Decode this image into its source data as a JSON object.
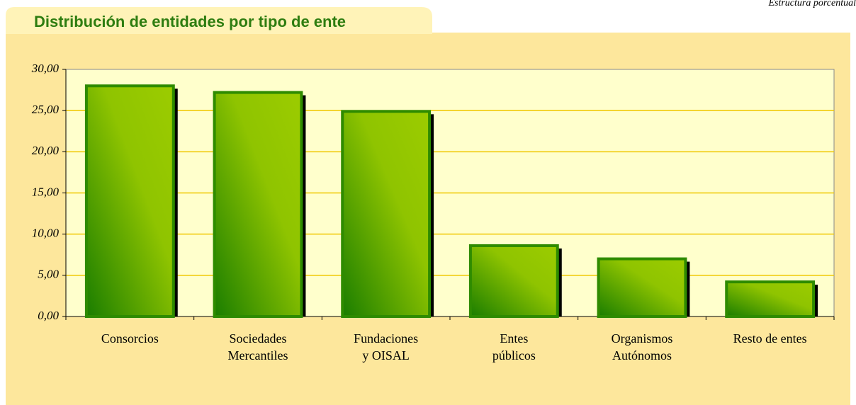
{
  "chart_data": {
    "type": "bar",
    "title": "Distribución de entidades por tipo de ente",
    "subtitle": "Estructura porcentual",
    "categories": [
      [
        "Consorcios"
      ],
      [
        "Sociedades",
        "Mercantiles"
      ],
      [
        "Fundaciones",
        "y OISAL"
      ],
      [
        "Entes",
        "públicos"
      ],
      [
        "Organismos",
        "Autónomos"
      ],
      [
        "Resto de entes"
      ]
    ],
    "values": [
      28.0,
      27.2,
      24.9,
      8.6,
      7.0,
      4.2
    ],
    "color": "#2e8b00",
    "ylim": [
      0,
      30
    ],
    "yticks": [
      {
        "value": 0,
        "label": "0,00"
      },
      {
        "value": 5,
        "label": "5,00"
      },
      {
        "value": 10,
        "label": "10,00"
      },
      {
        "value": 15,
        "label": "15,00"
      },
      {
        "value": 20,
        "label": "20,00"
      },
      {
        "value": 25,
        "label": "25,00"
      },
      {
        "value": 30,
        "label": "30,00"
      }
    ],
    "grid": true
  }
}
